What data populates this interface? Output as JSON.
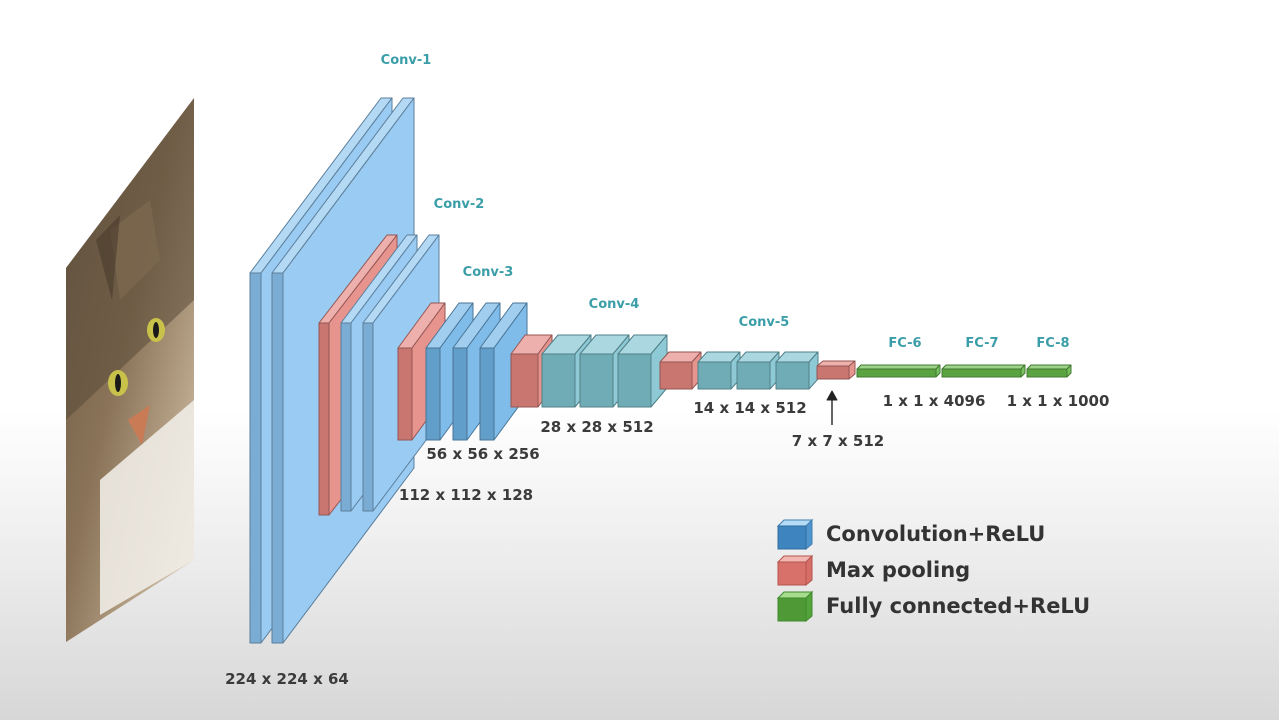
{
  "stages": [
    {
      "id": "conv1",
      "label": "Conv-1"
    },
    {
      "id": "conv2",
      "label": "Conv-2"
    },
    {
      "id": "conv3",
      "label": "Conv-3"
    },
    {
      "id": "conv4",
      "label": "Conv-4"
    },
    {
      "id": "conv5",
      "label": "Conv-5"
    },
    {
      "id": "fc6",
      "label": "FC-6"
    },
    {
      "id": "fc7",
      "label": "FC-7"
    },
    {
      "id": "fc8",
      "label": "FC-8"
    }
  ],
  "dimensions": [
    {
      "id": "d224",
      "label": "224 x 224 x 64"
    },
    {
      "id": "d112",
      "label": "112 x 112 x 128"
    },
    {
      "id": "d56",
      "label": "56 x 56 x 256"
    },
    {
      "id": "d28",
      "label": "28 x 28 x 512"
    },
    {
      "id": "d14",
      "label": "14 x 14 x 512"
    },
    {
      "id": "d7",
      "label": "7 x 7 x 512"
    },
    {
      "id": "d4096",
      "label": "1 x 1 x 4096"
    },
    {
      "id": "d1000",
      "label": "1 x 1 x 1000"
    }
  ],
  "legend": [
    {
      "id": "conv",
      "label": "Convolution+ReLU",
      "color": "#6fb3e6"
    },
    {
      "id": "pool",
      "label": "Max pooling",
      "color": "#e4857f"
    },
    {
      "id": "fc",
      "label": "Fully connected+ReLU",
      "color": "#66b94a"
    }
  ],
  "colors": {
    "conv_large": "#8cc4f0",
    "conv_small": "#6fb3e6",
    "conv_teal": "#7ec3cf",
    "pool": "#e4857f",
    "fc": "#66b94a",
    "stage_label": "#3a9ea8"
  },
  "input_image": {
    "icon": "cat-photo-icon"
  }
}
